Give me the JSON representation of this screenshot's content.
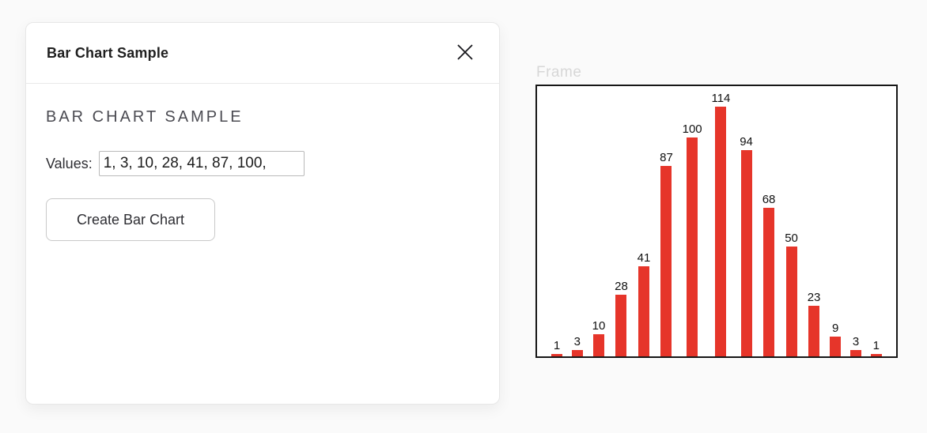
{
  "dialog": {
    "title": "Bar Chart Sample",
    "heading": "BAR CHART SAMPLE",
    "values_label": "Values:",
    "values_input_value": "1, 3, 10, 28, 41, 87, 100,",
    "create_button_label": "Create Bar Chart"
  },
  "frame": {
    "label": "Frame"
  },
  "chart_data": {
    "type": "bar",
    "values": [
      1,
      3,
      10,
      28,
      41,
      87,
      100,
      114,
      94,
      68,
      50,
      23,
      9,
      3,
      1
    ],
    "data_labels": [
      1,
      3,
      10,
      28,
      41,
      87,
      100,
      114,
      94,
      68,
      50,
      23,
      9,
      3,
      1
    ],
    "title": "",
    "xlabel": "",
    "ylabel": "",
    "ylim": [
      0,
      124
    ],
    "grid": false,
    "axes_ticks_shown": false,
    "legend": null,
    "bar_color": "#e6352a",
    "frame_border_color": "#161616"
  }
}
